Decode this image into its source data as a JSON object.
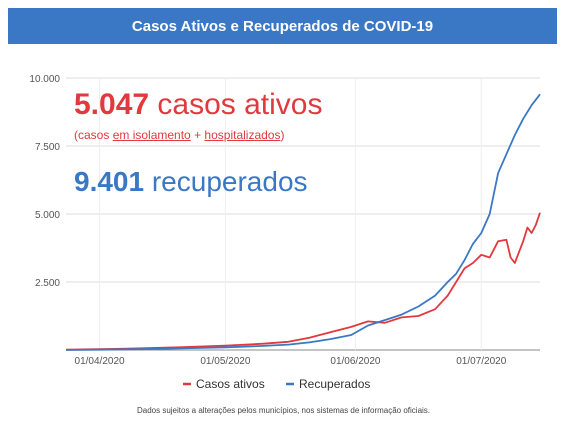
{
  "title": "Casos Ativos e Recuperados de COVID-19",
  "headline": {
    "active_number": "5.047",
    "active_text": "casos ativos",
    "sub_open": "(casos ",
    "sub_link1": "em isolamento",
    "sub_plus": " + ",
    "sub_link2": "hospitalizados",
    "sub_close": ")",
    "recovered_number": "9.401",
    "recovered_text": "recuperados"
  },
  "footnote": "Dados sujeitos a alterações pelos municípios, nos sistemas de informação oficiais.",
  "colors": {
    "active": "#e0393e",
    "recovered": "#3a78c6",
    "header": "#3a78c6"
  },
  "chart_data": {
    "type": "line",
    "ylim": [
      0,
      10000
    ],
    "yticks": [
      0,
      2500,
      5000,
      7500,
      10000
    ],
    "ytick_labels": [
      "",
      "2.500",
      "5.000",
      "7.500",
      "10.000"
    ],
    "xlim": [
      "2020-03-24",
      "2020-07-15"
    ],
    "xticks": [
      "2020-04-01",
      "2020-05-01",
      "2020-06-01",
      "2020-07-01"
    ],
    "xtick_labels": [
      "01/04/2020",
      "01/05/2020",
      "01/06/2020",
      "01/07/2020"
    ],
    "grid": true,
    "legend_position": "bottom",
    "series": [
      {
        "name": "Casos ativos",
        "color": "#e0393e",
        "points": [
          [
            "2020-03-24",
            10
          ],
          [
            "2020-04-01",
            30
          ],
          [
            "2020-04-10",
            60
          ],
          [
            "2020-04-20",
            100
          ],
          [
            "2020-05-01",
            160
          ],
          [
            "2020-05-10",
            230
          ],
          [
            "2020-05-16",
            300
          ],
          [
            "2020-05-21",
            450
          ],
          [
            "2020-05-26",
            650
          ],
          [
            "2020-05-31",
            850
          ],
          [
            "2020-06-04",
            1050
          ],
          [
            "2020-06-08",
            1000
          ],
          [
            "2020-06-12",
            1200
          ],
          [
            "2020-06-16",
            1250
          ],
          [
            "2020-06-20",
            1500
          ],
          [
            "2020-06-23",
            2000
          ],
          [
            "2020-06-25",
            2500
          ],
          [
            "2020-06-27",
            3000
          ],
          [
            "2020-06-29",
            3200
          ],
          [
            "2020-07-01",
            3500
          ],
          [
            "2020-07-03",
            3400
          ],
          [
            "2020-07-05",
            4000
          ],
          [
            "2020-07-07",
            4050
          ],
          [
            "2020-07-08",
            3400
          ],
          [
            "2020-07-09",
            3200
          ],
          [
            "2020-07-10",
            3600
          ],
          [
            "2020-07-11",
            4000
          ],
          [
            "2020-07-12",
            4500
          ],
          [
            "2020-07-13",
            4300
          ],
          [
            "2020-07-14",
            4600
          ],
          [
            "2020-07-15",
            5047
          ]
        ]
      },
      {
        "name": "Recuperados",
        "color": "#3a78c6",
        "points": [
          [
            "2020-03-24",
            0
          ],
          [
            "2020-04-01",
            10
          ],
          [
            "2020-04-10",
            30
          ],
          [
            "2020-04-20",
            60
          ],
          [
            "2020-05-01",
            100
          ],
          [
            "2020-05-10",
            150
          ],
          [
            "2020-05-16",
            200
          ],
          [
            "2020-05-21",
            280
          ],
          [
            "2020-05-26",
            400
          ],
          [
            "2020-05-31",
            550
          ],
          [
            "2020-06-04",
            900
          ],
          [
            "2020-06-08",
            1100
          ],
          [
            "2020-06-12",
            1300
          ],
          [
            "2020-06-16",
            1600
          ],
          [
            "2020-06-20",
            2000
          ],
          [
            "2020-06-23",
            2500
          ],
          [
            "2020-06-25",
            2800
          ],
          [
            "2020-06-27",
            3300
          ],
          [
            "2020-06-29",
            3900
          ],
          [
            "2020-07-01",
            4300
          ],
          [
            "2020-07-03",
            5000
          ],
          [
            "2020-07-05",
            6500
          ],
          [
            "2020-07-07",
            7200
          ],
          [
            "2020-07-09",
            7900
          ],
          [
            "2020-07-11",
            8500
          ],
          [
            "2020-07-13",
            9000
          ],
          [
            "2020-07-15",
            9401
          ]
        ]
      }
    ]
  }
}
